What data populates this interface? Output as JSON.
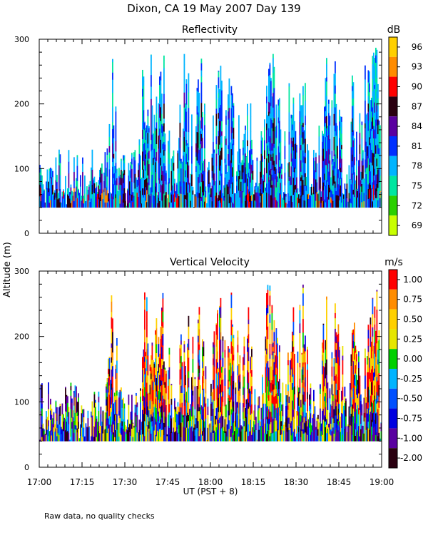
{
  "title": "Dixon, CA 19 May 2007  Day 139",
  "footnote": "Raw data, no quality checks",
  "xlabel": "UT  (PST + 8)",
  "ylabel": "Altitude (m)",
  "x_tick_labels": [
    "17:00",
    "17:15",
    "17:30",
    "17:45",
    "18:00",
    "18:15",
    "18:30",
    "18:45",
    "19:00"
  ],
  "chart_data": [
    {
      "type": "heatmap",
      "title": "Reflectivity",
      "xlabel": "UT  (PST + 8)",
      "ylabel": "Altitude (m)",
      "x_range_minutes": [
        0,
        120
      ],
      "ylim": [
        0,
        300
      ],
      "y_ticks": [
        0,
        100,
        200,
        300
      ],
      "colorbar": {
        "unit": "dB",
        "labels": [
          "96",
          "93",
          "90",
          "87",
          "84",
          "81",
          "78",
          "75",
          "72",
          "69"
        ],
        "colors": [
          "#ffd000",
          "#ff8c00",
          "#ff0000",
          "#2a0010",
          "#5a00a0",
          "#0030ff",
          "#00b4ff",
          "#00e6a0",
          "#2ad000",
          "#c8ff00"
        ]
      },
      "echo_base_m": 40,
      "typical_top_m": 120,
      "max_top_m": 300
    },
    {
      "type": "heatmap",
      "title": "Vertical Velocity",
      "xlabel": "UT  (PST + 8)",
      "ylabel": "Altitude (m)",
      "x_range_minutes": [
        0,
        120
      ],
      "ylim": [
        0,
        300
      ],
      "y_ticks": [
        0,
        100,
        200,
        300
      ],
      "colorbar": {
        "unit": "m/s",
        "labels": [
          "1.00",
          "0.75",
          "0.50",
          "0.25",
          "0.00",
          "-0.25",
          "-0.50",
          "-0.75",
          "-1.00",
          "-2.00"
        ],
        "colors": [
          "#ff0000",
          "#ff8c00",
          "#ffd000",
          "#e6e600",
          "#00d000",
          "#00b4ff",
          "#0050ff",
          "#0000e0",
          "#5a00a0",
          "#2a0010"
        ]
      },
      "echo_base_m": 40,
      "typical_top_m": 120,
      "max_top_m": 300
    }
  ]
}
